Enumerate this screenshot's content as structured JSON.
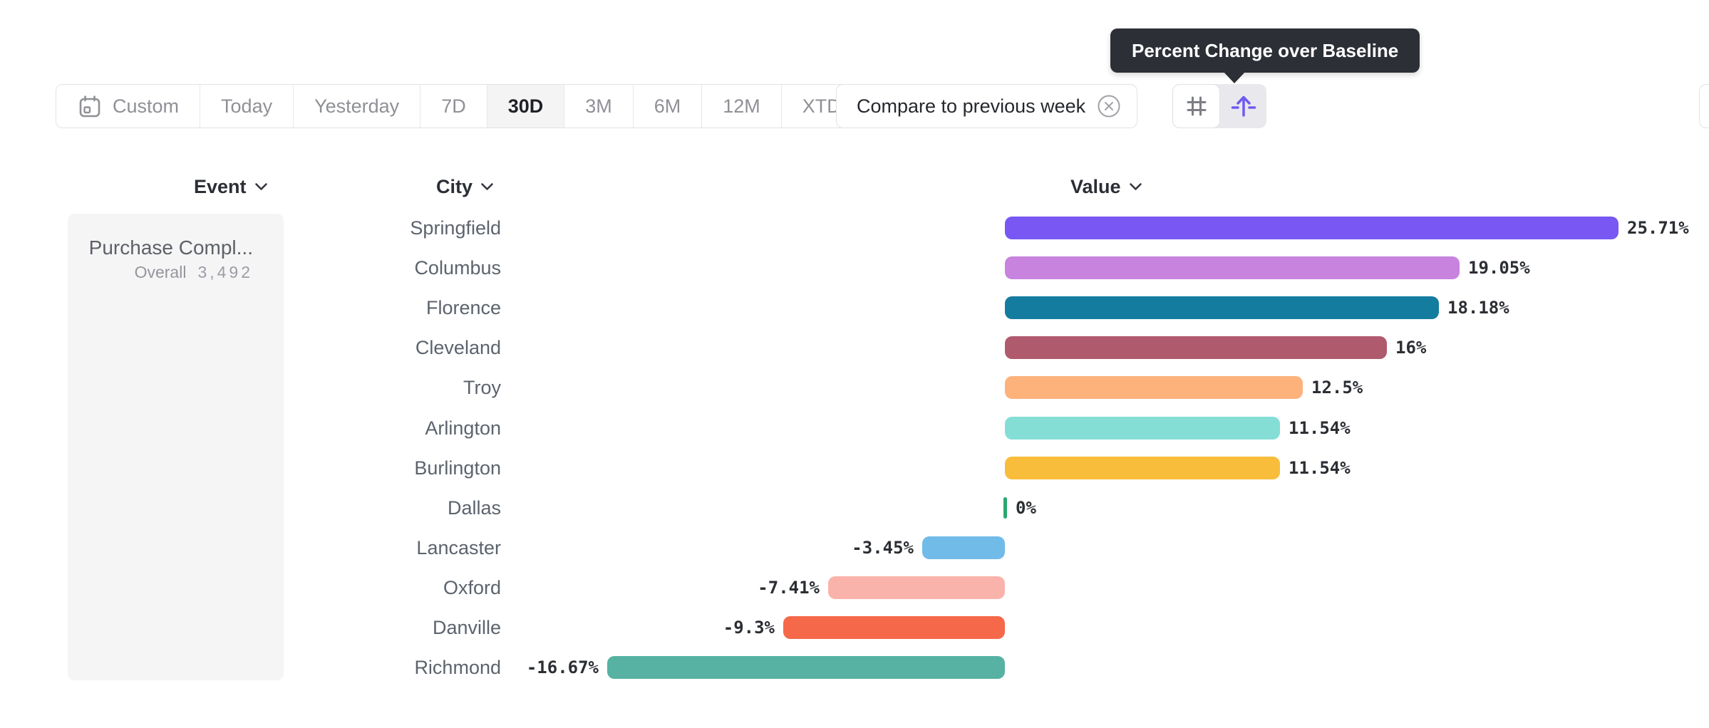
{
  "tooltip": {
    "text": "Percent Change over Baseline",
    "bg": "#2c2f36"
  },
  "toolbar": {
    "items": [
      {
        "label": "Custom",
        "icon": "calendar-icon",
        "selected": false
      },
      {
        "label": "Today",
        "selected": false
      },
      {
        "label": "Yesterday",
        "selected": false
      },
      {
        "label": "7D",
        "selected": false
      },
      {
        "label": "30D",
        "selected": true
      },
      {
        "label": "3M",
        "selected": false
      },
      {
        "label": "6M",
        "selected": false
      },
      {
        "label": "12M",
        "selected": false
      },
      {
        "label": "XTD",
        "chevron": true,
        "selected": false
      }
    ]
  },
  "compare": {
    "label": "Compare to previous week",
    "close_icon": "circle-x-icon"
  },
  "view_toggle": {
    "accent": "#6f5af0",
    "buttons": [
      {
        "icon": "grid-icon",
        "selected": false
      },
      {
        "icon": "percent-change-arrow-icon",
        "selected": true
      }
    ]
  },
  "columns": {
    "event": "Event",
    "city": "City",
    "value": "Value"
  },
  "event_panel": {
    "event_name": "Purchase Compl...",
    "segment_label": "Overall",
    "segment_value": "3,492"
  },
  "chart_data": {
    "type": "bar",
    "orientation": "horizontal",
    "title": "Percent Change over Baseline",
    "value_column": "Value",
    "unit": "%",
    "baseline": 0,
    "xlim": [
      -16.67,
      25.71
    ],
    "grid": false,
    "categories": [
      "Springfield",
      "Columbus",
      "Florence",
      "Cleveland",
      "Troy",
      "Arlington",
      "Burlington",
      "Dallas",
      "Lancaster",
      "Oxford",
      "Danville",
      "Richmond"
    ],
    "values": [
      25.71,
      19.05,
      18.18,
      16,
      12.5,
      11.54,
      11.54,
      0,
      -3.45,
      -7.41,
      -9.3,
      -16.67
    ],
    "value_labels": [
      "25.71%",
      "19.05%",
      "18.18%",
      "16%",
      "12.5%",
      "11.54%",
      "11.54%",
      "0%",
      "-3.45%",
      "-7.41%",
      "-9.3%",
      "-16.67%"
    ],
    "colors": [
      "#7857f2",
      "#c783de",
      "#147c9f",
      "#b05a6e",
      "#fdb27c",
      "#85ded6",
      "#f7bd3b",
      "#2aa76d",
      "#71bbe9",
      "#fab3aa",
      "#f5684a",
      "#57b2a3"
    ]
  }
}
